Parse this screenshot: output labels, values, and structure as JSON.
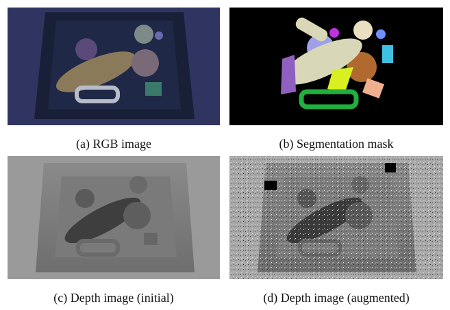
{
  "figure": {
    "panels": [
      {
        "caption": "(a) RGB image"
      },
      {
        "caption": "(b) Segmentation mask"
      },
      {
        "caption": "(c) Depth image (initial)"
      },
      {
        "caption": "(d) Depth image (augmented)"
      }
    ]
  }
}
